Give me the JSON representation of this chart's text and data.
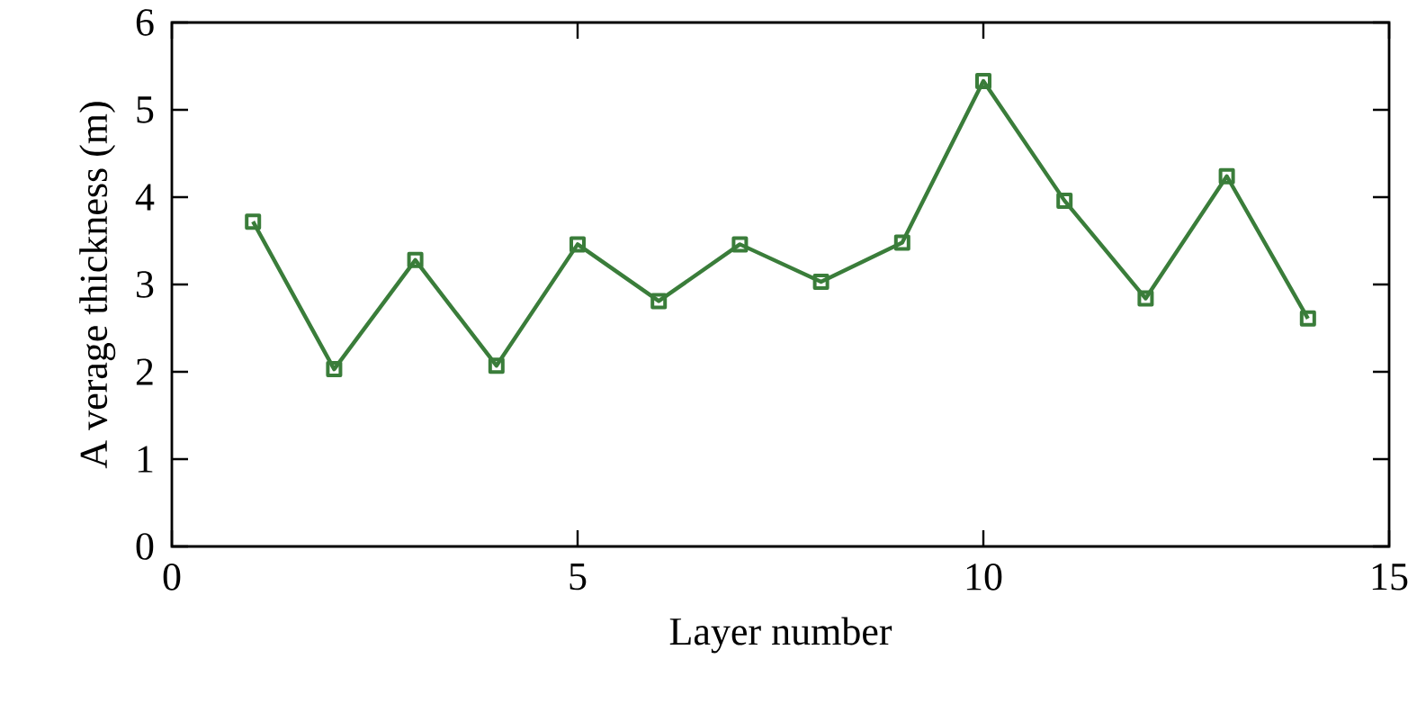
{
  "chart_data": {
    "type": "line",
    "xlabel": "Layer number",
    "ylabel": "A verage thickness (m)",
    "x": [
      1,
      2,
      3,
      4,
      5,
      6,
      7,
      8,
      9,
      10,
      11,
      12,
      13,
      14
    ],
    "series": [
      {
        "color": "#3a7d3a",
        "values": [
          3.72,
          2.03,
          3.28,
          2.07,
          3.46,
          2.81,
          3.46,
          3.03,
          3.48,
          5.33,
          3.96,
          2.84,
          4.24,
          2.61
        ]
      }
    ],
    "xlim": [
      0,
      15
    ],
    "ylim": [
      0,
      6
    ],
    "xticks": [
      0,
      5,
      10,
      15
    ],
    "yticks": [
      0,
      1,
      2,
      3,
      4,
      5,
      6
    ],
    "marker": "square",
    "line_style": "solid",
    "grid": false
  }
}
